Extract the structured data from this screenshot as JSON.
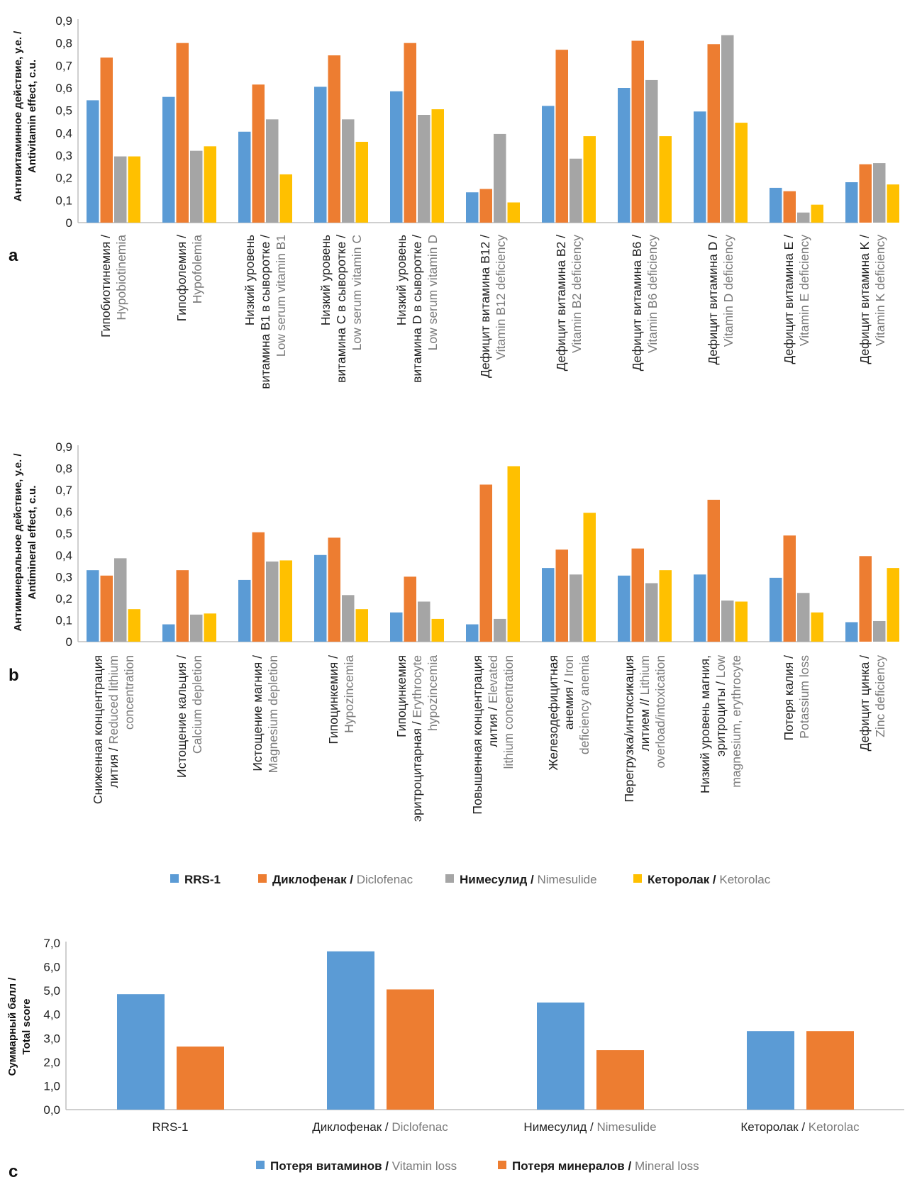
{
  "colors": {
    "rrs1": "#5b9bd5",
    "diclofenac": "#ed7d31",
    "nimesulide": "#a5a5a5",
    "ketorolac": "#ffc000",
    "vitamin_loss": "#5b9bd5",
    "mineral_loss": "#ed7d31",
    "axis": "#bfbfbf"
  },
  "legend_ab": [
    {
      "ru": "RRS-1",
      "en": ""
    },
    {
      "ru": "Диклофенак /",
      "en": "Diclofenac"
    },
    {
      "ru": "Нимесулид /",
      "en": "Nimesulide"
    },
    {
      "ru": "Кеторолак /",
      "en": "Ketorolac"
    }
  ],
  "legend_c": [
    {
      "ru": "Потеря витаминов /",
      "en": "Vitamin loss"
    },
    {
      "ru": "Потеря минералов /",
      "en": "Mineral loss"
    }
  ],
  "chart_data": [
    {
      "panel": "a",
      "type": "bar",
      "ylabel_ru": "Антивитаминное действие, у.е. /",
      "ylabel_en": "Antivitamin effect, c.u.",
      "ylim": [
        0,
        0.9
      ],
      "yticks": [
        "0",
        "0,1",
        "0,2",
        "0,3",
        "0,4",
        "0,5",
        "0,6",
        "0,7",
        "0,8",
        "0,9"
      ],
      "grid": false,
      "legend": "bottom",
      "categories": [
        {
          "ru": [
            "Гипобиотинемия /"
          ],
          "en": [
            "Hypobiotinemia"
          ]
        },
        {
          "ru": [
            "Гипофолемия /"
          ],
          "en": [
            "Hypofolemia"
          ]
        },
        {
          "ru": [
            "Низкий уровень",
            "витамина B1 в сыворотке /"
          ],
          "en": [
            "Low serum vitamin B1"
          ]
        },
        {
          "ru": [
            "Низкий уровень",
            "витамина C в сыворотке /"
          ],
          "en": [
            "Low serum vitamin C"
          ]
        },
        {
          "ru": [
            "Низкий уровень",
            "витамина D в сыворотке /"
          ],
          "en": [
            "Low serum vitamin D"
          ]
        },
        {
          "ru": [
            "Дефицит витамина B12 /"
          ],
          "en": [
            "Vitamin B12 deficiency"
          ]
        },
        {
          "ru": [
            "Дефицит витамина B2 /"
          ],
          "en": [
            "Vitamin B2 deficiency"
          ]
        },
        {
          "ru": [
            "Дефицит витамина B6 /"
          ],
          "en": [
            "Vitamin B6 deficiency"
          ]
        },
        {
          "ru": [
            "Дефицит витамина D /"
          ],
          "en": [
            "Vitamin D deficiency"
          ]
        },
        {
          "ru": [
            "Дефицит витамина E /"
          ],
          "en": [
            "Vitamin E deficiency"
          ]
        },
        {
          "ru": [
            "Дефицит витамина K /"
          ],
          "en": [
            "Vitamin K deficiency"
          ]
        }
      ],
      "series": [
        {
          "name": "RRS-1",
          "values": [
            0.545,
            0.56,
            0.405,
            0.605,
            0.585,
            0.135,
            0.52,
            0.6,
            0.495,
            0.155,
            0.18
          ]
        },
        {
          "name": "Диклофенак / Diclofenac",
          "values": [
            0.735,
            0.8,
            0.615,
            0.745,
            0.8,
            0.15,
            0.77,
            0.81,
            0.795,
            0.14,
            0.26
          ]
        },
        {
          "name": "Нимесулид / Nimesulide",
          "values": [
            0.295,
            0.32,
            0.46,
            0.46,
            0.48,
            0.395,
            0.285,
            0.635,
            0.835,
            0.045,
            0.265
          ]
        },
        {
          "name": "Кеторолак / Ketorolac",
          "values": [
            0.295,
            0.34,
            0.215,
            0.36,
            0.505,
            0.09,
            0.385,
            0.385,
            0.445,
            0.08,
            0.17
          ]
        }
      ]
    },
    {
      "panel": "b",
      "type": "bar",
      "ylabel_ru": "Антиминеральное действие, у.е. /",
      "ylabel_en": "Antimineral effect, c.u.",
      "ylim": [
        0,
        0.9
      ],
      "yticks": [
        "0",
        "0,1",
        "0,2",
        "0,3",
        "0,4",
        "0,5",
        "0,6",
        "0,7",
        "0,8",
        "0,9"
      ],
      "grid": false,
      "legend": "bottom",
      "categories": [
        {
          "lines": [
            [
              "Сниженная концентрация"
            ],
            [
              "лития / ",
              "Reduced lithium"
            ],
            [
              "",
              "concentration"
            ]
          ]
        },
        {
          "lines": [
            [
              "Истощение кальция /"
            ],
            [
              "",
              "Calcium depletion"
            ]
          ]
        },
        {
          "lines": [
            [
              "Истощение магния /"
            ],
            [
              "",
              "Magnesium depletion"
            ]
          ]
        },
        {
          "lines": [
            [
              "Гипоцинкемия /"
            ],
            [
              "",
              "Hypozincemia"
            ]
          ]
        },
        {
          "lines": [
            [
              "Гипоцинкемия"
            ],
            [
              "эритроцитарная / ",
              "Erythrocyte"
            ],
            [
              "",
              "hypozincemia"
            ]
          ]
        },
        {
          "lines": [
            [
              "Повышенная концентрация"
            ],
            [
              "лития / ",
              "Elevated"
            ],
            [
              "",
              "lithium concentration"
            ]
          ]
        },
        {
          "lines": [
            [
              "Железодефицитная"
            ],
            [
              "анемия / ",
              "Iron"
            ],
            [
              "",
              "deficiency anemia"
            ]
          ]
        },
        {
          "lines": [
            [
              "Перегрузка/интоксикация"
            ],
            [
              "литием // ",
              "Lithium"
            ],
            [
              "",
              "overload/intoxication"
            ]
          ]
        },
        {
          "lines": [
            [
              "Низкий уровень магния,"
            ],
            [
              "эритроциты / ",
              "Low"
            ],
            [
              "",
              "magnesium, erythrocyte"
            ]
          ]
        },
        {
          "lines": [
            [
              "Потеря калия /"
            ],
            [
              "",
              "Potassium loss"
            ]
          ]
        },
        {
          "lines": [
            [
              "Дефицит цинка /"
            ],
            [
              "",
              "Zinc deficiency"
            ]
          ]
        }
      ],
      "series": [
        {
          "name": "RRS-1",
          "values": [
            0.33,
            0.08,
            0.285,
            0.4,
            0.135,
            0.08,
            0.34,
            0.305,
            0.31,
            0.295,
            0.09
          ]
        },
        {
          "name": "Диклофенак / Diclofenac",
          "values": [
            0.305,
            0.33,
            0.505,
            0.48,
            0.3,
            0.725,
            0.425,
            0.43,
            0.655,
            0.49,
            0.395
          ]
        },
        {
          "name": "Нимесулид / Nimesulide",
          "values": [
            0.385,
            0.125,
            0.37,
            0.215,
            0.185,
            0.105,
            0.31,
            0.27,
            0.19,
            0.225,
            0.095
          ]
        },
        {
          "name": "Кеторолак / Ketorolac",
          "values": [
            0.15,
            0.13,
            0.375,
            0.15,
            0.105,
            0.81,
            0.595,
            0.33,
            0.185,
            0.135,
            0.34
          ]
        }
      ]
    },
    {
      "panel": "c",
      "type": "bar",
      "ylabel_ru": "Суммарный балл /",
      "ylabel_en": "Total score",
      "ylim": [
        0,
        7
      ],
      "yticks": [
        "0,0",
        "1,0",
        "2,0",
        "3,0",
        "4,0",
        "5,0",
        "6,0",
        "7,0"
      ],
      "grid": false,
      "legend": "bottom",
      "categories": [
        {
          "ru": "RRS-1",
          "en": ""
        },
        {
          "ru": "Диклофенак / ",
          "en": "Diclofenac"
        },
        {
          "ru": "Нимесулид / ",
          "en": "Nimesulide"
        },
        {
          "ru": "Кеторолак / ",
          "en": "Ketorolac"
        }
      ],
      "series": [
        {
          "name": "Потеря витаминов / Vitamin loss",
          "values": [
            4.85,
            6.65,
            4.5,
            3.3
          ]
        },
        {
          "name": "Потеря минералов / Mineral loss",
          "values": [
            2.65,
            5.05,
            2.5,
            3.3
          ]
        }
      ]
    }
  ]
}
